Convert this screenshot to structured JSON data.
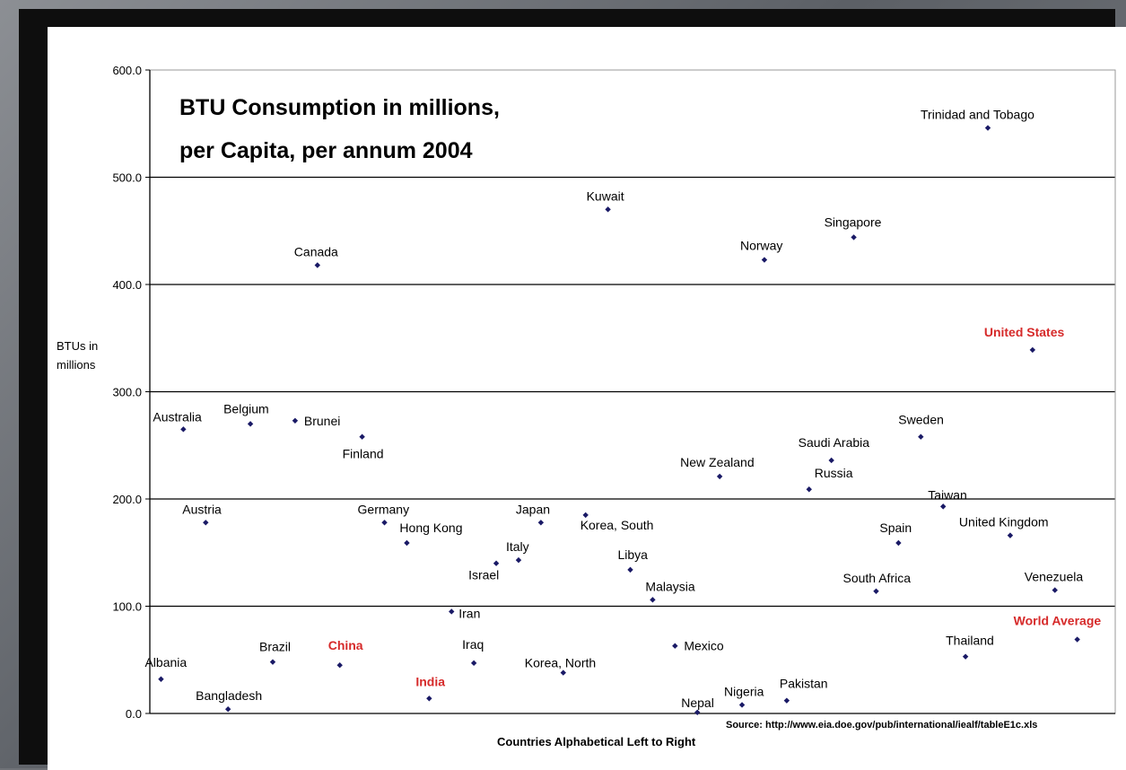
{
  "chart_data": {
    "type": "scatter",
    "title_lines": [
      "BTU Consumption in millions,",
      "per Capita, per annum 2004"
    ],
    "ylabel_lines": [
      "BTUs in",
      "millions"
    ],
    "xlabel": "Countries Alphabetical Left to Right",
    "source": "Source: http://www.eia.doe.gov/pub/international/iealf/tableE1c.xls",
    "ylim": [
      0,
      600
    ],
    "xlim": [
      0.5,
      43.7
    ],
    "yticks": [
      "0.0",
      "100.0",
      "200.0",
      "300.0",
      "400.0",
      "500.0",
      "600.0"
    ],
    "grid": true,
    "point_color": "#1a1a66",
    "highlight_color": "#d62a2a",
    "points": [
      {
        "x": 1,
        "y": 32,
        "label": "Albania",
        "highlight": false
      },
      {
        "x": 2,
        "y": 265,
        "label": "Australia",
        "highlight": false
      },
      {
        "x": 3,
        "y": 178,
        "label": "Austria",
        "highlight": false
      },
      {
        "x": 4,
        "y": 4,
        "label": "Bangladesh",
        "highlight": false
      },
      {
        "x": 5,
        "y": 270,
        "label": "Belgium",
        "highlight": false
      },
      {
        "x": 6,
        "y": 48,
        "label": "Brazil",
        "highlight": false
      },
      {
        "x": 7,
        "y": 273,
        "label": "Brunei",
        "highlight": false
      },
      {
        "x": 8,
        "y": 418,
        "label": "Canada",
        "highlight": false
      },
      {
        "x": 9,
        "y": 45,
        "label": "China",
        "highlight": true
      },
      {
        "x": 10,
        "y": 258,
        "label": "Finland",
        "highlight": false
      },
      {
        "x": 11,
        "y": 178,
        "label": "Germany",
        "highlight": false
      },
      {
        "x": 12,
        "y": 159,
        "label": "Hong Kong",
        "highlight": false
      },
      {
        "x": 13,
        "y": 14,
        "label": "India",
        "highlight": true
      },
      {
        "x": 14,
        "y": 95,
        "label": "Iran",
        "highlight": false
      },
      {
        "x": 15,
        "y": 47,
        "label": "Iraq",
        "highlight": false
      },
      {
        "x": 16,
        "y": 140,
        "label": "Israel",
        "highlight": false
      },
      {
        "x": 17,
        "y": 143,
        "label": "Italy",
        "highlight": false
      },
      {
        "x": 18,
        "y": 178,
        "label": "Japan",
        "highlight": false
      },
      {
        "x": 19,
        "y": 38,
        "label": "Korea, North",
        "highlight": false
      },
      {
        "x": 20,
        "y": 185,
        "label": "Korea, South",
        "highlight": false
      },
      {
        "x": 21,
        "y": 470,
        "label": "Kuwait",
        "highlight": false
      },
      {
        "x": 22,
        "y": 134,
        "label": "Libya",
        "highlight": false
      },
      {
        "x": 23,
        "y": 106,
        "label": "Malaysia",
        "highlight": false
      },
      {
        "x": 24,
        "y": 63,
        "label": "Mexico",
        "highlight": false
      },
      {
        "x": 25,
        "y": 1,
        "label": "Nepal",
        "highlight": false
      },
      {
        "x": 26,
        "y": 221,
        "label": "New Zealand",
        "highlight": false
      },
      {
        "x": 27,
        "y": 8,
        "label": "Nigeria",
        "highlight": false
      },
      {
        "x": 28,
        "y": 423,
        "label": "Norway",
        "highlight": false
      },
      {
        "x": 29,
        "y": 12,
        "label": "Pakistan",
        "highlight": false
      },
      {
        "x": 30,
        "y": 209,
        "label": "Russia",
        "highlight": false
      },
      {
        "x": 31,
        "y": 236,
        "label": "Saudi Arabia",
        "highlight": false
      },
      {
        "x": 32,
        "y": 444,
        "label": "Singapore",
        "highlight": false
      },
      {
        "x": 33,
        "y": 114,
        "label": "South Africa",
        "highlight": false
      },
      {
        "x": 34,
        "y": 159,
        "label": "Spain",
        "highlight": false
      },
      {
        "x": 35,
        "y": 258,
        "label": "Sweden",
        "highlight": false
      },
      {
        "x": 36,
        "y": 193,
        "label": "Taiwan",
        "highlight": false
      },
      {
        "x": 37,
        "y": 53,
        "label": "Thailand",
        "highlight": false
      },
      {
        "x": 38,
        "y": 546,
        "label": "Trinidad and Tobago",
        "highlight": false
      },
      {
        "x": 39,
        "y": 166,
        "label": "United Kingdom",
        "highlight": false
      },
      {
        "x": 40,
        "y": 339,
        "label": "United States",
        "highlight": true
      },
      {
        "x": 41,
        "y": 115,
        "label": "Venezuela",
        "highlight": false
      },
      {
        "x": 42,
        "y": 69,
        "label": "World Average",
        "highlight": true
      }
    ]
  }
}
